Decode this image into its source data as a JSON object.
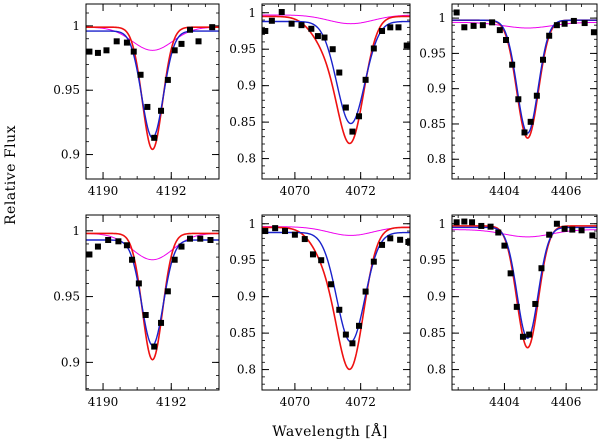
{
  "figure": {
    "ylabel": "Relative Flux",
    "xlabel": "Wavelength [Å]"
  },
  "colors": {
    "observed": "#000000",
    "model_red": "#ee1111",
    "model_blue": "#1a22cc",
    "model_magenta": "#ee00ee",
    "frame": "#000000"
  },
  "chart_data": [
    {
      "type": "line",
      "xlim": [
        4189.5,
        4193.4
      ],
      "ylim": [
        0.881,
        1.017
      ],
      "xticks": [
        4190,
        4192
      ],
      "xticklabels": [
        "4190",
        "4192"
      ],
      "yticks": [
        0.9,
        0.95,
        1.0
      ],
      "yticklabels": [
        "0.9",
        "0.95",
        "1"
      ],
      "line_center": 4191.45,
      "series": [
        {
          "name": "observed",
          "marker": "square",
          "x": [
            4189.6,
            4189.85,
            4190.1,
            4190.4,
            4190.7,
            4190.9,
            4191.1,
            4191.3,
            4191.5,
            4191.7,
            4191.9,
            4192.1,
            4192.3,
            4192.55,
            4192.8,
            4193.2
          ],
          "y": [
            0.98,
            0.979,
            0.981,
            0.988,
            0.987,
            0.98,
            0.962,
            0.937,
            0.913,
            0.934,
            0.958,
            0.981,
            0.986,
            0.997,
            0.988,
            0.999
          ]
        },
        {
          "name": "red-model",
          "continuum": 0.999,
          "depth": 0.095,
          "fwhm": 0.7
        },
        {
          "name": "blue-model",
          "continuum": 0.996,
          "depth": 0.083,
          "fwhm": 0.75
        },
        {
          "name": "magenta-model",
          "continuum": 0.999,
          "depth": 0.018,
          "fwhm": 1.4
        }
      ]
    },
    {
      "type": "line",
      "xlim": [
        4069.0,
        4073.5
      ],
      "ylim": [
        0.772,
        1.012
      ],
      "xticks": [
        4070,
        4072
      ],
      "xticklabels": [
        "4070",
        "4072"
      ],
      "yticks": [
        0.8,
        0.85,
        0.9,
        0.95,
        1.0
      ],
      "yticklabels": [
        "0.8",
        "0.85",
        "0.9",
        "0.95",
        "1"
      ],
      "line_center": 4071.7,
      "series": [
        {
          "name": "observed",
          "marker": "square",
          "x": [
            4069.1,
            4069.3,
            4069.6,
            4069.9,
            4070.2,
            4070.5,
            4070.7,
            4070.9,
            4071.15,
            4071.35,
            4071.55,
            4071.75,
            4071.95,
            4072.15,
            4072.4,
            4072.65,
            4072.9,
            4073.15,
            4073.4
          ],
          "y": [
            0.975,
            0.989,
            1.001,
            0.985,
            0.983,
            0.978,
            0.968,
            0.966,
            0.95,
            0.918,
            0.87,
            0.837,
            0.858,
            0.908,
            0.951,
            0.975,
            0.98,
            0.98,
            0.955
          ]
        },
        {
          "name": "red-model",
          "continuum": 0.995,
          "depth": 0.165,
          "fwhm": 0.95,
          "wing_at": 4070.95,
          "wing_depth": 0.035,
          "wing_width": 0.45
        },
        {
          "name": "blue-model",
          "continuum": 0.988,
          "depth": 0.14,
          "fwhm": 1.0
        },
        {
          "name": "magenta-model",
          "continuum": 0.997,
          "depth": 0.012,
          "fwhm": 1.6
        }
      ]
    },
    {
      "type": "line",
      "xlim": [
        4402.3,
        4407.0
      ],
      "ylim": [
        0.772,
        1.02
      ],
      "xticks": [
        4404,
        4406
      ],
      "xticklabels": [
        "4404",
        "4406"
      ],
      "yticks": [
        0.8,
        0.85,
        0.9,
        0.95,
        1.0
      ],
      "yticklabels": [
        "0.8",
        "0.85",
        "0.9",
        "0.95",
        "1"
      ],
      "line_center": 4404.75,
      "series": [
        {
          "name": "observed",
          "marker": "square",
          "x": [
            4402.45,
            4402.7,
            4403.0,
            4403.3,
            4403.6,
            4403.85,
            4404.05,
            4404.25,
            4404.45,
            4404.65,
            4404.85,
            4405.05,
            4405.25,
            4405.45,
            4405.7,
            4405.95,
            4406.25,
            4406.6,
            4406.9
          ],
          "y": [
            1.008,
            0.987,
            0.989,
            0.99,
            0.994,
            0.983,
            0.969,
            0.934,
            0.885,
            0.838,
            0.853,
            0.89,
            0.941,
            0.975,
            0.99,
            0.992,
            0.996,
            0.993,
            0.98
          ]
        },
        {
          "name": "red-model",
          "continuum": 0.997,
          "depth": 0.167,
          "fwhm": 0.82
        },
        {
          "name": "blue-model",
          "continuum": 0.997,
          "depth": 0.16,
          "fwhm": 0.8
        },
        {
          "name": "magenta-model",
          "continuum": 0.994,
          "depth": 0.008,
          "fwhm": 1.8
        }
      ]
    },
    {
      "type": "line",
      "xlim": [
        4189.5,
        4193.4
      ],
      "ylim": [
        0.879,
        1.012
      ],
      "xticks": [
        4190,
        4192
      ],
      "xticklabels": [
        "4190",
        "4192"
      ],
      "yticks": [
        0.9,
        0.95,
        1.0
      ],
      "yticklabels": [
        "0.9",
        "0.95",
        "1"
      ],
      "line_center": 4191.45,
      "series": [
        {
          "name": "observed",
          "marker": "square",
          "x": [
            4189.6,
            4189.85,
            4190.15,
            4190.45,
            4190.7,
            4190.85,
            4191.05,
            4191.25,
            4191.5,
            4191.7,
            4191.9,
            4192.1,
            4192.3,
            4192.55,
            4192.85,
            4193.15
          ],
          "y": [
            0.982,
            0.988,
            0.993,
            0.992,
            0.989,
            0.978,
            0.96,
            0.936,
            0.912,
            0.93,
            0.954,
            0.978,
            0.988,
            0.994,
            0.994,
            0.993
          ]
        },
        {
          "name": "red-model",
          "continuum": 0.998,
          "depth": 0.096,
          "fwhm": 0.7
        },
        {
          "name": "blue-model",
          "continuum": 0.993,
          "depth": 0.08,
          "fwhm": 0.75
        },
        {
          "name": "magenta-model",
          "continuum": 0.998,
          "depth": 0.02,
          "fwhm": 1.4
        }
      ]
    },
    {
      "type": "line",
      "xlim": [
        4069.0,
        4073.5
      ],
      "ylim": [
        0.772,
        1.012
      ],
      "xticks": [
        4070,
        4072
      ],
      "xticklabels": [
        "4070",
        "4072"
      ],
      "yticks": [
        0.8,
        0.85,
        0.9,
        0.95,
        1.0
      ],
      "yticklabels": [
        "0.8",
        "0.85",
        "0.9",
        "0.95",
        "1"
      ],
      "line_center": 4071.7,
      "series": [
        {
          "name": "observed",
          "marker": "square",
          "x": [
            4069.1,
            4069.4,
            4069.7,
            4070.0,
            4070.3,
            4070.55,
            4070.8,
            4071.1,
            4071.35,
            4071.55,
            4071.75,
            4071.95,
            4072.15,
            4072.4,
            4072.65,
            4072.9,
            4073.2,
            4073.45
          ],
          "y": [
            0.99,
            0.994,
            0.99,
            0.985,
            0.979,
            0.958,
            0.95,
            0.917,
            0.882,
            0.848,
            0.836,
            0.86,
            0.907,
            0.948,
            0.971,
            0.98,
            0.978,
            0.975
          ]
        },
        {
          "name": "red-model",
          "continuum": 0.995,
          "depth": 0.182,
          "fwhm": 0.95,
          "wing_at": 4071.0,
          "wing_depth": 0.04,
          "wing_width": 0.45
        },
        {
          "name": "blue-model",
          "continuum": 0.988,
          "depth": 0.15,
          "fwhm": 1.0
        },
        {
          "name": "magenta-model",
          "continuum": 0.996,
          "depth": 0.012,
          "fwhm": 1.6
        }
      ]
    },
    {
      "type": "line",
      "xlim": [
        4402.3,
        4407.0
      ],
      "ylim": [
        0.772,
        1.012
      ],
      "xticks": [
        4404,
        4406
      ],
      "xticklabels": [
        "4404",
        "4406"
      ],
      "yticks": [
        0.8,
        0.85,
        0.9,
        0.95,
        1.0
      ],
      "yticklabels": [
        "0.8",
        "0.85",
        "0.9",
        "0.95",
        "1"
      ],
      "line_center": 4404.75,
      "series": [
        {
          "name": "observed",
          "marker": "square",
          "x": [
            4402.45,
            4402.7,
            4402.95,
            4403.25,
            4403.55,
            4403.8,
            4404.0,
            4404.2,
            4404.4,
            4404.6,
            4404.8,
            4405.0,
            4405.2,
            4405.45,
            4405.7,
            4405.95,
            4406.2,
            4406.5,
            4406.85
          ],
          "y": [
            1.002,
            1.003,
            1.002,
            0.997,
            0.996,
            0.988,
            0.97,
            0.932,
            0.886,
            0.845,
            0.848,
            0.89,
            0.939,
            0.985,
            1.0,
            0.993,
            0.992,
            0.991,
            0.984
          ]
        },
        {
          "name": "red-model",
          "continuum": 0.997,
          "depth": 0.167,
          "fwhm": 0.82
        },
        {
          "name": "blue-model",
          "continuum": 0.995,
          "depth": 0.152,
          "fwhm": 0.8
        },
        {
          "name": "magenta-model",
          "continuum": 0.992,
          "depth": 0.01,
          "fwhm": 1.8
        }
      ]
    }
  ]
}
